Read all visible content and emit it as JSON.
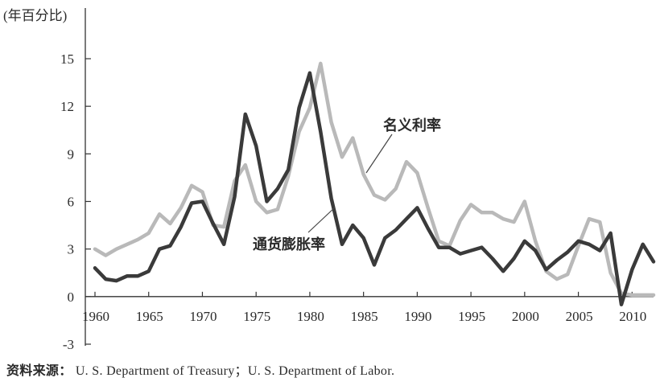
{
  "chart_data": {
    "type": "line",
    "unit_label": "(年百分比)",
    "ylim": [
      -3,
      15
    ],
    "yticks": [
      "15",
      "12",
      "9",
      "6",
      "3",
      "0",
      "-3"
    ],
    "ytick_values": [
      15,
      12,
      9,
      6,
      3,
      0,
      -3
    ],
    "xlim": [
      1960,
      2012
    ],
    "xticks": [
      "1960",
      "1965",
      "1970",
      "1975",
      "1980",
      "1985",
      "1990",
      "1995",
      "2000",
      "2005",
      "2010"
    ],
    "xtick_values": [
      1960,
      1965,
      1970,
      1975,
      1980,
      1985,
      1990,
      1995,
      2000,
      2005,
      2010
    ],
    "grid": false,
    "x": [
      1960,
      1961,
      1962,
      1963,
      1964,
      1965,
      1966,
      1967,
      1968,
      1969,
      1970,
      1971,
      1972,
      1973,
      1974,
      1975,
      1976,
      1977,
      1978,
      1979,
      1980,
      1981,
      1982,
      1983,
      1984,
      1985,
      1986,
      1987,
      1988,
      1989,
      1990,
      1991,
      1992,
      1993,
      1994,
      1995,
      1996,
      1997,
      1998,
      1999,
      2000,
      2001,
      2002,
      2003,
      2004,
      2005,
      2006,
      2007,
      2008,
      2009,
      2010,
      2011,
      2012
    ],
    "series": [
      {
        "name": "名义利率",
        "color": "#b9b9b9",
        "values": [
          3.0,
          2.6,
          3.0,
          3.3,
          3.6,
          4.0,
          5.2,
          4.6,
          5.6,
          7.0,
          6.6,
          4.5,
          4.4,
          7.3,
          8.3,
          6.0,
          5.3,
          5.5,
          7.6,
          10.4,
          11.9,
          14.7,
          11.0,
          8.8,
          10.0,
          7.7,
          6.4,
          6.1,
          6.8,
          8.5,
          7.8,
          5.6,
          3.5,
          3.2,
          4.8,
          5.8,
          5.3,
          5.3,
          4.9,
          4.7,
          6.0,
          3.5,
          1.6,
          1.1,
          1.4,
          3.2,
          4.9,
          4.7,
          1.5,
          0.2,
          0.1,
          0.1,
          0.1
        ]
      },
      {
        "name": "通货膨胀率",
        "color": "#3a3a3a",
        "values": [
          1.8,
          1.1,
          1.0,
          1.3,
          1.3,
          1.6,
          3.0,
          3.2,
          4.4,
          5.9,
          6.0,
          4.6,
          3.3,
          6.3,
          11.5,
          9.5,
          6.0,
          6.8,
          8.0,
          11.9,
          14.1,
          10.4,
          6.2,
          3.3,
          4.5,
          3.7,
          2.0,
          3.7,
          4.2,
          4.9,
          5.6,
          4.3,
          3.1,
          3.1,
          2.7,
          2.9,
          3.1,
          2.4,
          1.6,
          2.4,
          3.5,
          2.9,
          1.7,
          2.3,
          2.8,
          3.5,
          3.3,
          2.9,
          4.0,
          -0.5,
          1.7,
          3.3,
          2.2
        ]
      }
    ],
    "annotations": [
      "名义利率",
      "通货膨胀率"
    ]
  },
  "source": {
    "lead": "资料来源：",
    "text": "U. S.  Department of Treasury；U. S.  Department of Labor."
  }
}
